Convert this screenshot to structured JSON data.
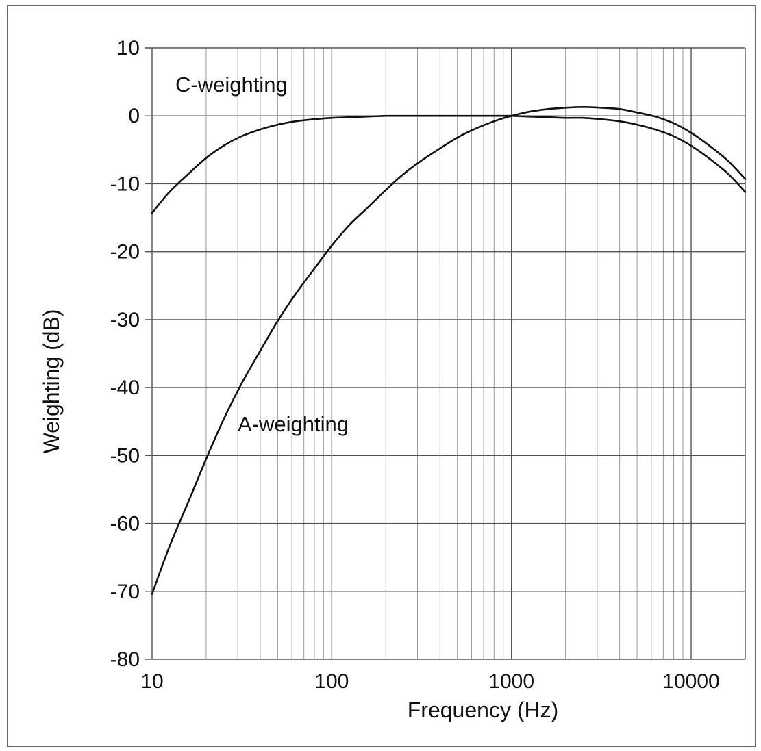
{
  "chart_data": {
    "type": "line",
    "title": "",
    "xlabel": "Frequency (Hz)",
    "ylabel": "Weighting (dB)",
    "x_scale": "log",
    "xlim": [
      10,
      20000
    ],
    "ylim": [
      -80,
      10
    ],
    "x_ticks": [
      10,
      100,
      1000,
      10000
    ],
    "x_tick_labels": [
      "10",
      "100",
      "1000",
      "10000"
    ],
    "y_ticks": [
      10,
      0,
      -10,
      -20,
      -30,
      -40,
      -50,
      -60,
      -70,
      -80
    ],
    "y_tick_labels": [
      "10",
      "0",
      "-10",
      "-20",
      "-30",
      "-40",
      "-50",
      "-60",
      "-70",
      "-80"
    ],
    "grid": true,
    "line_color": "#111111",
    "series": [
      {
        "name": "C-weighting",
        "x": [
          10,
          12.5,
          16,
          20,
          25,
          31.5,
          40,
          50,
          63,
          80,
          100,
          125,
          160,
          200,
          250,
          315,
          400,
          500,
          630,
          800,
          1000,
          1250,
          1600,
          2000,
          2500,
          3150,
          4000,
          5000,
          6300,
          8000,
          10000,
          12500,
          16000,
          20000
        ],
        "y": [
          -14.3,
          -11.2,
          -8.5,
          -6.2,
          -4.4,
          -3.0,
          -2.0,
          -1.3,
          -0.8,
          -0.5,
          -0.3,
          -0.2,
          -0.1,
          0,
          0,
          0,
          0,
          0,
          0,
          0,
          0,
          -0.1,
          -0.2,
          -0.3,
          -0.3,
          -0.5,
          -0.8,
          -1.3,
          -2.0,
          -3.0,
          -4.4,
          -6.2,
          -8.5,
          -11.2
        ]
      },
      {
        "name": "A-weighting",
        "x": [
          10,
          12.5,
          16,
          20,
          25,
          31.5,
          40,
          50,
          63,
          80,
          100,
          125,
          160,
          200,
          250,
          315,
          400,
          500,
          630,
          800,
          1000,
          1250,
          1600,
          2000,
          2500,
          3150,
          4000,
          5000,
          6300,
          8000,
          10000,
          12500,
          16000,
          20000
        ],
        "y": [
          -70.4,
          -63.4,
          -56.7,
          -50.5,
          -44.7,
          -39.4,
          -34.6,
          -30.2,
          -26.2,
          -22.5,
          -19.1,
          -16.1,
          -13.4,
          -10.9,
          -8.6,
          -6.6,
          -4.8,
          -3.2,
          -1.9,
          -0.8,
          0,
          0.6,
          1.0,
          1.2,
          1.3,
          1.2,
          1.0,
          0.5,
          -0.1,
          -1.1,
          -2.5,
          -4.3,
          -6.6,
          -9.3
        ]
      }
    ]
  }
}
